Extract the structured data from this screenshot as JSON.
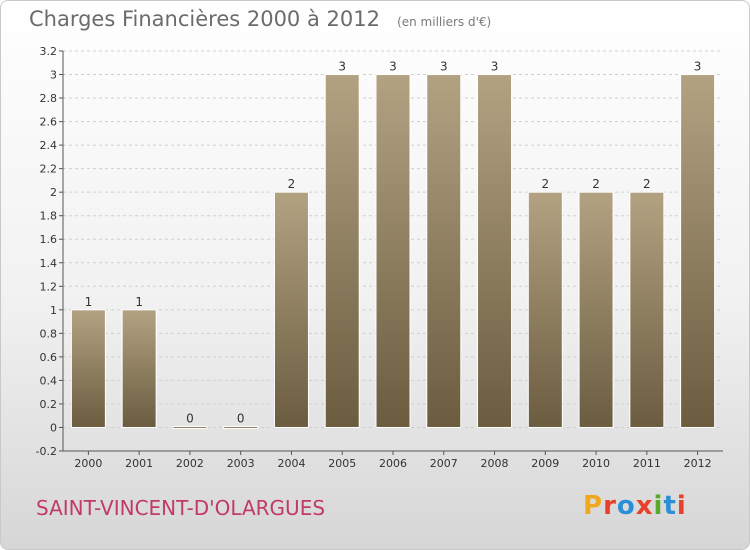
{
  "header": {
    "title": "Charges Financières 2000 à 2012",
    "unit": "(en milliers d'€)"
  },
  "commune": "SAINT-VINCENT-D'OLARGUES",
  "logo": {
    "letters": [
      "P",
      "r",
      "o",
      "x",
      "i",
      "t",
      "i"
    ],
    "colors": [
      "#f0a81e",
      "#e8402a",
      "#2a8fd6",
      "#e8402a",
      "#5aa82c",
      "#2a8fd6",
      "#e8402a"
    ]
  },
  "colors": {
    "bar": "#8f7d5e",
    "bar_light": "#b3a282",
    "bar_dark": "#6b5c40",
    "grid": "#cfcfcf",
    "axis": "#555555"
  },
  "chart_data": {
    "type": "bar",
    "title": "Charges Financières 2000 à 2012",
    "subtitle": "(en milliers d'€)",
    "xlabel": "",
    "ylabel": "",
    "categories": [
      "2000",
      "2001",
      "2002",
      "2003",
      "2004",
      "2005",
      "2006",
      "2007",
      "2008",
      "2009",
      "2010",
      "2011",
      "2012"
    ],
    "values": [
      1,
      1,
      0,
      0,
      2,
      3,
      3,
      3,
      3,
      2,
      2,
      2,
      3
    ],
    "data_labels": [
      "1",
      "1",
      "0",
      "0",
      "2",
      "3",
      "3",
      "3",
      "3",
      "2",
      "2",
      "2",
      "3"
    ],
    "ylim": [
      -0.2,
      3.2
    ],
    "yticks": [
      -0.2,
      0,
      0.2,
      0.4,
      0.6,
      0.8,
      1,
      1.2,
      1.4,
      1.6,
      1.8,
      2,
      2.2,
      2.4,
      2.6,
      2.8,
      3,
      3.2
    ],
    "ytick_labels": [
      "-0.2",
      "0",
      "0.2",
      "0.4",
      "0.6",
      "0.8",
      "1",
      "1.2",
      "1.4",
      "1.6",
      "1.8",
      "2",
      "2.2",
      "2.4",
      "2.6",
      "2.8",
      "3",
      "3.2"
    ],
    "grid": true,
    "legend": "none"
  }
}
